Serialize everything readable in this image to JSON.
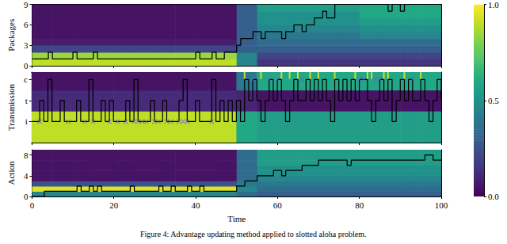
{
  "chart_data": [
    {
      "type": "heatmap",
      "ylabel": "Packages",
      "xlim": [
        0,
        100
      ],
      "xticks": [
        0,
        20,
        40,
        60,
        80,
        100
      ],
      "ylim": [
        0,
        9
      ],
      "yticks": [
        0,
        3,
        6,
        9
      ],
      "tick_labels": "y",
      "heatmap": {
        "x_edges": [
          0,
          5,
          10,
          15,
          20,
          25,
          30,
          35,
          40,
          45,
          50,
          55,
          60,
          65,
          70,
          75,
          80,
          85,
          90,
          95,
          100
        ],
        "y_edges": [
          0,
          1,
          2,
          3,
          4,
          5,
          6,
          7,
          8,
          9
        ],
        "cells": [
          [
            0.9,
            0.9,
            0.9,
            0.9,
            0.9,
            0.9,
            0.9,
            0.9,
            0.9,
            0.9,
            0.45,
            0.15,
            0.15,
            0.15,
            0.15,
            0.15,
            0.15,
            0.15,
            0.15,
            0.15
          ],
          [
            0.85,
            0.85,
            0.85,
            0.85,
            0.85,
            0.85,
            0.85,
            0.85,
            0.85,
            0.85,
            0.45,
            0.2,
            0.2,
            0.2,
            0.2,
            0.2,
            0.2,
            0.2,
            0.2,
            0.2
          ],
          [
            0.2,
            0.2,
            0.2,
            0.2,
            0.2,
            0.2,
            0.2,
            0.2,
            0.2,
            0.2,
            0.3,
            0.3,
            0.3,
            0.3,
            0.3,
            0.3,
            0.3,
            0.3,
            0.3,
            0.3
          ],
          [
            0.08,
            0.08,
            0.08,
            0.08,
            0.08,
            0.08,
            0.08,
            0.08,
            0.08,
            0.08,
            0.3,
            0.35,
            0.35,
            0.35,
            0.35,
            0.35,
            0.35,
            0.35,
            0.35,
            0.35
          ],
          [
            0.05,
            0.05,
            0.05,
            0.05,
            0.05,
            0.05,
            0.05,
            0.05,
            0.05,
            0.05,
            0.3,
            0.4,
            0.4,
            0.4,
            0.4,
            0.4,
            0.45,
            0.45,
            0.45,
            0.45
          ],
          [
            0.05,
            0.05,
            0.05,
            0.05,
            0.05,
            0.05,
            0.05,
            0.05,
            0.05,
            0.05,
            0.3,
            0.45,
            0.45,
            0.45,
            0.45,
            0.45,
            0.5,
            0.5,
            0.5,
            0.5
          ],
          [
            0.05,
            0.05,
            0.05,
            0.05,
            0.05,
            0.05,
            0.05,
            0.05,
            0.05,
            0.05,
            0.3,
            0.5,
            0.5,
            0.5,
            0.5,
            0.5,
            0.55,
            0.55,
            0.55,
            0.55
          ],
          [
            0.05,
            0.05,
            0.05,
            0.05,
            0.05,
            0.05,
            0.05,
            0.05,
            0.05,
            0.05,
            0.3,
            0.5,
            0.5,
            0.5,
            0.5,
            0.5,
            0.6,
            0.6,
            0.6,
            0.6
          ],
          [
            0.05,
            0.05,
            0.05,
            0.05,
            0.05,
            0.05,
            0.05,
            0.05,
            0.05,
            0.05,
            0.3,
            0.55,
            0.55,
            0.55,
            0.55,
            0.55,
            0.6,
            0.6,
            0.6,
            0.6
          ]
        ]
      },
      "series": [
        {
          "type": "line",
          "line_style": "step",
          "color": "#000000",
          "x": [
            0,
            4,
            5,
            10,
            11,
            15,
            16,
            40,
            41,
            44,
            45,
            47,
            49,
            50,
            51,
            54,
            56,
            57,
            61,
            62,
            64,
            66,
            67,
            69,
            71,
            72,
            74,
            87,
            88,
            90,
            91,
            100
          ],
          "values": [
            1,
            2,
            1,
            2,
            1,
            2,
            1,
            2,
            1,
            2,
            1,
            2,
            2,
            3,
            4,
            5,
            4,
            5,
            4,
            5,
            6,
            5,
            6,
            7,
            8,
            7,
            9,
            8,
            9,
            8,
            9,
            9
          ]
        }
      ]
    },
    {
      "type": "heatmap",
      "ylabel": "Transmission",
      "xlim": [
        0,
        100
      ],
      "xticks": [
        0,
        20,
        40,
        60,
        80,
        100
      ],
      "ylim": [
        -1,
        2.35
      ],
      "yticks": [
        {
          "value": 0,
          "label": "i"
        },
        {
          "value": 1,
          "label": "t"
        },
        {
          "value": 2,
          "label": "c"
        }
      ],
      "tick_labels": "y",
      "heatmap": {
        "x_edges": [
          0,
          5,
          10,
          15,
          20,
          25,
          30,
          35,
          40,
          45,
          50,
          55,
          60,
          65,
          70,
          75,
          80,
          85,
          90,
          95,
          100
        ],
        "y_edges": [
          -1,
          0.5,
          1.5,
          2.35
        ],
        "cells": [
          [
            0.9,
            0.9,
            0.9,
            0.9,
            0.9,
            0.9,
            0.9,
            0.9,
            0.9,
            0.9,
            0.6,
            0.55,
            0.55,
            0.55,
            0.55,
            0.55,
            0.55,
            0.55,
            0.55,
            0.55
          ],
          [
            0.12,
            0.12,
            0.12,
            0.12,
            0.12,
            0.12,
            0.12,
            0.12,
            0.12,
            0.12,
            0.1,
            0.05,
            0.05,
            0.05,
            0.05,
            0.05,
            0.05,
            0.05,
            0.05,
            0.05
          ],
          [
            0.05,
            0.05,
            0.05,
            0.05,
            0.05,
            0.05,
            0.05,
            0.05,
            0.05,
            0.05,
            0.4,
            0.6,
            0.6,
            0.6,
            0.6,
            0.6,
            0.6,
            0.6,
            0.6,
            0.6
          ]
        ]
      },
      "series": [
        {
          "type": "line",
          "line_style": "step",
          "color": "#000000",
          "x": [
            0,
            1,
            2,
            3,
            4,
            5,
            6,
            7,
            8,
            9,
            10,
            11,
            12,
            13,
            14,
            15,
            16,
            17,
            18,
            19,
            20,
            21,
            22,
            23,
            24,
            25,
            26,
            27,
            28,
            29,
            30,
            31,
            32,
            33,
            34,
            35,
            36,
            37,
            38,
            39,
            40,
            41,
            42,
            43,
            44,
            45,
            46,
            47,
            48,
            49,
            50,
            51,
            52,
            53,
            54,
            55,
            56,
            57,
            58,
            59,
            60,
            61,
            62,
            63,
            64,
            65,
            66,
            67,
            68,
            69,
            70,
            71,
            72,
            73,
            74,
            75,
            76,
            77,
            78,
            79,
            80,
            81,
            82,
            83,
            84,
            85,
            86,
            87,
            88,
            89,
            90,
            91,
            92,
            93,
            94,
            95,
            96,
            97,
            98,
            99,
            100
          ],
          "values": [
            0,
            0,
            1,
            0,
            2,
            0,
            0,
            1,
            0,
            0,
            0,
            1,
            0,
            0,
            2,
            0,
            0,
            1,
            0,
            1,
            0,
            0,
            0,
            1,
            0,
            2,
            0,
            0,
            0,
            1,
            0,
            0,
            1,
            0,
            0,
            0,
            1,
            2,
            0,
            0,
            1,
            0,
            0,
            0,
            2,
            0,
            1,
            0,
            1,
            0,
            1,
            0,
            2,
            1,
            2,
            1,
            0,
            1,
            2,
            1,
            2,
            1,
            0,
            1,
            2,
            1,
            1,
            2,
            1,
            2,
            1,
            2,
            1,
            0,
            2,
            1,
            2,
            1,
            2,
            1,
            2,
            2,
            1,
            0,
            1,
            2,
            1,
            2,
            0,
            1,
            2,
            1,
            2,
            1,
            1,
            2,
            1,
            0,
            1,
            2,
            1
          ]
        },
        {
          "type": "scatter",
          "marker": "x",
          "color": "#6a5acd",
          "x": [
            2,
            9,
            13,
            15,
            19,
            21,
            23,
            25,
            26,
            27,
            28,
            30,
            31,
            33,
            34,
            36,
            37,
            38,
            44,
            54,
            58,
            60,
            66,
            80,
            81,
            84,
            85,
            93
          ],
          "values": [
            0,
            0,
            0,
            0,
            0,
            0,
            0,
            0,
            0,
            0,
            0,
            0,
            0,
            0,
            0,
            0,
            0,
            0,
            0,
            2,
            2,
            2,
            2,
            2,
            2,
            2,
            2,
            2
          ]
        },
        {
          "type": "scatter",
          "marker": "vline",
          "color": "#fde725",
          "x": [
            52,
            56,
            61,
            63,
            65,
            68,
            70,
            74,
            79,
            82,
            83,
            86,
            87,
            91,
            95
          ],
          "values": [
            2.2,
            2.2,
            2.2,
            2.2,
            2.2,
            2.2,
            2.2,
            2.2,
            2.2,
            2.2,
            2.2,
            2.2,
            2.2,
            2.2,
            2.2
          ]
        }
      ]
    },
    {
      "type": "heatmap",
      "ylabel": "Action",
      "xlabel": "Time",
      "xlim": [
        0,
        100
      ],
      "xticks": [
        0,
        20,
        40,
        60,
        80,
        100
      ],
      "ylim": [
        0,
        9
      ],
      "yticks": [
        0,
        4,
        8
      ],
      "heatmap": {
        "x_edges": [
          0,
          5,
          10,
          15,
          20,
          25,
          30,
          35,
          40,
          45,
          50,
          55,
          60,
          65,
          70,
          75,
          80,
          85,
          90,
          95,
          100
        ],
        "y_edges": [
          0,
          1,
          2,
          3,
          4,
          5,
          6,
          7,
          8,
          9
        ],
        "cells": [
          [
            0.45,
            0.45,
            0.45,
            0.45,
            0.45,
            0.45,
            0.45,
            0.45,
            0.45,
            0.45,
            0.35,
            0.3,
            0.3,
            0.3,
            0.3,
            0.3,
            0.3,
            0.3,
            0.3,
            0.3
          ],
          [
            0.95,
            0.95,
            0.95,
            0.95,
            0.95,
            0.95,
            0.95,
            0.95,
            0.95,
            0.95,
            0.45,
            0.35,
            0.35,
            0.35,
            0.35,
            0.35,
            0.35,
            0.35,
            0.35,
            0.35
          ],
          [
            0.25,
            0.25,
            0.25,
            0.25,
            0.25,
            0.25,
            0.25,
            0.25,
            0.25,
            0.25,
            0.4,
            0.4,
            0.4,
            0.4,
            0.4,
            0.4,
            0.4,
            0.4,
            0.4,
            0.4
          ],
          [
            0.05,
            0.05,
            0.05,
            0.05,
            0.05,
            0.05,
            0.05,
            0.05,
            0.05,
            0.05,
            0.35,
            0.45,
            0.45,
            0.45,
            0.45,
            0.45,
            0.45,
            0.45,
            0.45,
            0.45
          ],
          [
            0.05,
            0.05,
            0.05,
            0.05,
            0.05,
            0.05,
            0.05,
            0.05,
            0.05,
            0.05,
            0.35,
            0.5,
            0.5,
            0.5,
            0.5,
            0.5,
            0.5,
            0.5,
            0.5,
            0.5
          ],
          [
            0.05,
            0.05,
            0.05,
            0.05,
            0.05,
            0.05,
            0.05,
            0.05,
            0.05,
            0.05,
            0.35,
            0.5,
            0.5,
            0.5,
            0.5,
            0.5,
            0.5,
            0.5,
            0.5,
            0.5
          ],
          [
            0.05,
            0.05,
            0.05,
            0.05,
            0.05,
            0.05,
            0.05,
            0.05,
            0.05,
            0.05,
            0.35,
            0.55,
            0.55,
            0.55,
            0.55,
            0.55,
            0.55,
            0.55,
            0.55,
            0.55
          ],
          [
            0.05,
            0.05,
            0.05,
            0.05,
            0.05,
            0.05,
            0.05,
            0.05,
            0.05,
            0.05,
            0.35,
            0.55,
            0.55,
            0.55,
            0.55,
            0.55,
            0.55,
            0.55,
            0.55,
            0.55
          ],
          [
            0.05,
            0.05,
            0.05,
            0.05,
            0.05,
            0.05,
            0.05,
            0.05,
            0.05,
            0.05,
            0.35,
            0.55,
            0.55,
            0.55,
            0.55,
            0.55,
            0.55,
            0.55,
            0.55,
            0.55
          ]
        ]
      },
      "series": [
        {
          "type": "line",
          "line_style": "step",
          "color": "#000000",
          "x": [
            0,
            3,
            11,
            12,
            14,
            15,
            16,
            17,
            24,
            25,
            31,
            32,
            34,
            35,
            38,
            39,
            41,
            42,
            50,
            52,
            55,
            59,
            61,
            62,
            66,
            70,
            77,
            78,
            96,
            98,
            100
          ],
          "values": [
            0,
            1,
            2,
            1,
            2,
            1,
            2,
            1,
            2,
            1,
            2,
            1,
            2,
            1,
            2,
            1,
            2,
            1,
            2,
            3,
            4,
            5,
            4,
            5,
            6,
            7,
            6,
            7,
            8,
            7,
            7
          ]
        }
      ]
    }
  ],
  "colorbar": {
    "range": [
      0,
      1
    ],
    "ticks": [
      {
        "value": 0,
        "label": "0.0"
      },
      0.5,
      {
        "value": 1,
        "label": "1.0"
      }
    ]
  },
  "caption": "Figure 4: Advantage updating method applied to slotted aloha problem."
}
